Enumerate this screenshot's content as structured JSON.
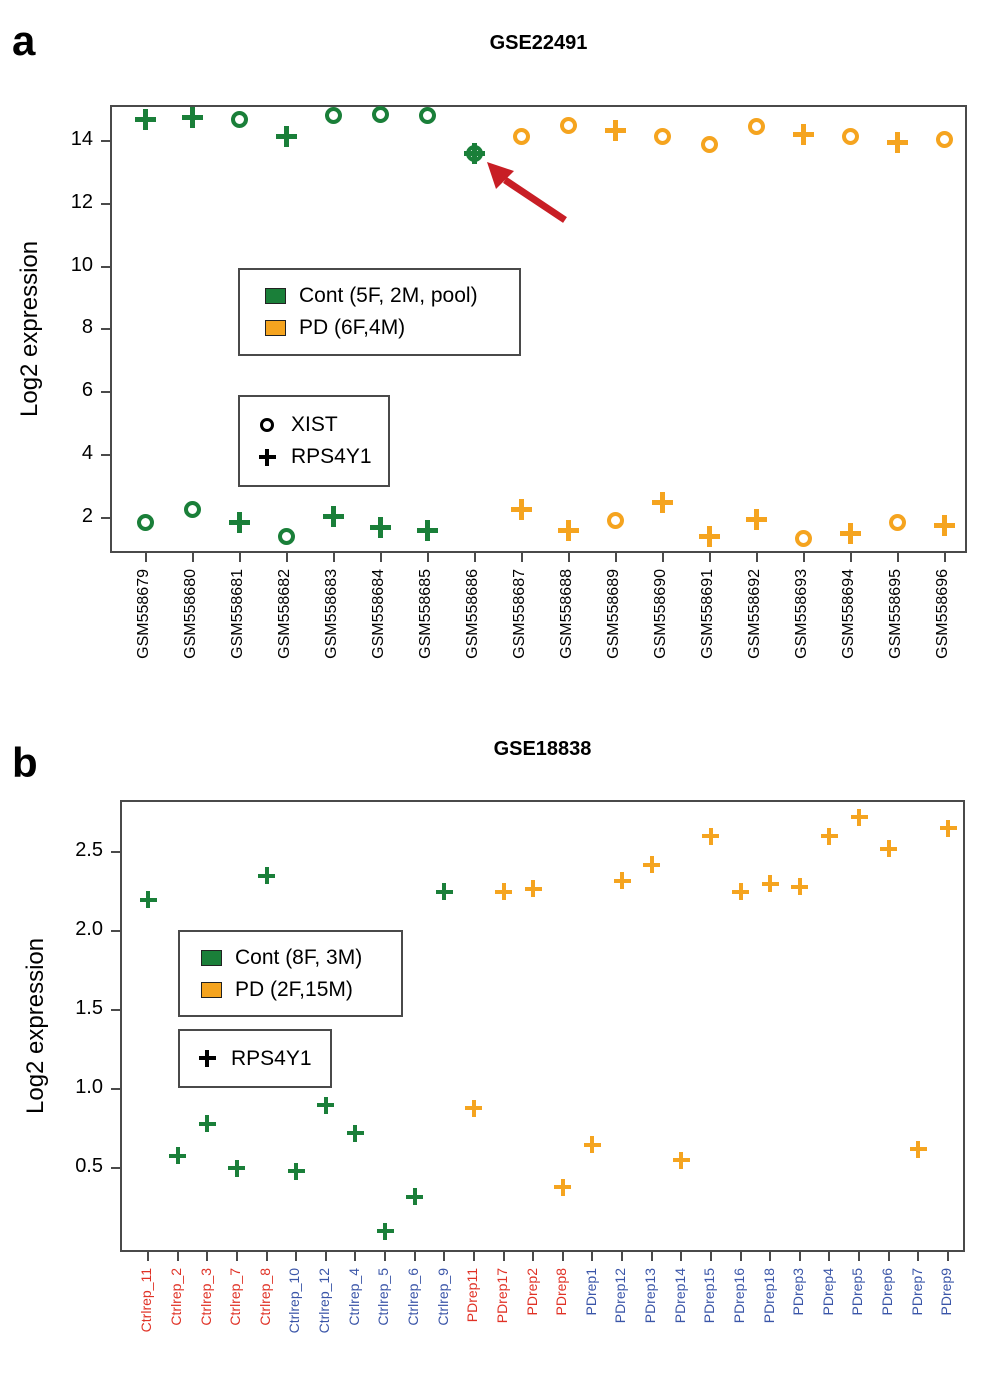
{
  "figure": {
    "panels": [
      {
        "letter": "a"
      },
      {
        "letter": "b"
      }
    ]
  },
  "chart_data": [
    {
      "type": "scatter",
      "panel": "a",
      "title": "GSE22491",
      "xlabel": "",
      "ylabel": "Log2 expression",
      "ylim": [
        0.88,
        15.15
      ],
      "yticks": [
        "2",
        "4",
        "6",
        "8",
        "10",
        "12",
        "14"
      ],
      "grid": false,
      "legend": {
        "groups": [
          {
            "key": "Cont",
            "label": "Cont (5F, 2M, pool)",
            "color": "#1a7f39"
          },
          {
            "key": "PD",
            "label": "PD (6F,4M)",
            "color": "#f5a41f"
          }
        ],
        "genes": [
          {
            "label": "XIST",
            "marker": "circle"
          },
          {
            "label": "RPS4Y1",
            "marker": "plus"
          }
        ]
      },
      "annotation": {
        "shape": "arrow",
        "color": "#c81e25",
        "points_to": "GSM558686"
      },
      "samples": [
        {
          "name": "GSM558679",
          "group": "Cont",
          "values": {
            "XIST": 1.85,
            "RPS4Y1": 14.7
          }
        },
        {
          "name": "GSM558680",
          "group": "Cont",
          "values": {
            "XIST": 2.25,
            "RPS4Y1": 14.75
          }
        },
        {
          "name": "GSM558681",
          "group": "Cont",
          "values": {
            "XIST": 14.7,
            "RPS4Y1": 1.85
          }
        },
        {
          "name": "GSM558682",
          "group": "Cont",
          "values": {
            "XIST": 1.4,
            "RPS4Y1": 14.15
          }
        },
        {
          "name": "GSM558683",
          "group": "Cont",
          "values": {
            "XIST": 14.8,
            "RPS4Y1": 2.05
          }
        },
        {
          "name": "GSM558684",
          "group": "Cont",
          "values": {
            "XIST": 14.85,
            "RPS4Y1": 1.7
          }
        },
        {
          "name": "GSM558685",
          "group": "Cont",
          "values": {
            "XIST": 14.8,
            "RPS4Y1": 1.6
          }
        },
        {
          "name": "GSM558686",
          "group": "Cont",
          "values": {
            "XIST": 13.6,
            "RPS4Y1": 13.6
          }
        },
        {
          "name": "GSM558687",
          "group": "PD",
          "values": {
            "XIST": 14.15,
            "RPS4Y1": 2.25
          }
        },
        {
          "name": "GSM558688",
          "group": "PD",
          "values": {
            "XIST": 14.5,
            "RPS4Y1": 1.6
          }
        },
        {
          "name": "GSM558689",
          "group": "PD",
          "values": {
            "XIST": 1.9,
            "RPS4Y1": 14.35
          }
        },
        {
          "name": "GSM558690",
          "group": "PD",
          "values": {
            "XIST": 14.15,
            "RPS4Y1": 2.5
          }
        },
        {
          "name": "GSM558691",
          "group": "PD",
          "values": {
            "XIST": 13.9,
            "RPS4Y1": 1.4
          }
        },
        {
          "name": "GSM558692",
          "group": "PD",
          "values": {
            "XIST": 14.45,
            "RPS4Y1": 1.95
          }
        },
        {
          "name": "GSM558693",
          "group": "PD",
          "values": {
            "XIST": 1.35,
            "RPS4Y1": 14.2
          }
        },
        {
          "name": "GSM558694",
          "group": "PD",
          "values": {
            "XIST": 14.15,
            "RPS4Y1": 1.5
          }
        },
        {
          "name": "GSM558695",
          "group": "PD",
          "values": {
            "XIST": 1.85,
            "RPS4Y1": 13.95
          }
        },
        {
          "name": "GSM558696",
          "group": "PD",
          "values": {
            "XIST": 14.05,
            "RPS4Y1": 1.75
          }
        }
      ]
    },
    {
      "type": "scatter",
      "panel": "b",
      "title": "GSE18838",
      "xlabel": "",
      "ylabel": "Log2 expression",
      "ylim": [
        -0.03,
        2.83
      ],
      "yticks": [
        "0.5",
        "1.0",
        "1.5",
        "2.0",
        "2.5"
      ],
      "grid": false,
      "label_palette": {
        "red": "#e03226",
        "blue": "#3a55a8"
      },
      "legend": {
        "groups": [
          {
            "key": "Cont",
            "label": "Cont (8F, 3M)",
            "color": "#1a7f39"
          },
          {
            "key": "PD",
            "label": "PD (2F,15M)",
            "color": "#f5a41f"
          }
        ],
        "genes": [
          {
            "label": "RPS4Y1",
            "marker": "plus"
          }
        ]
      },
      "samples": [
        {
          "name": "Ctrlrep_11",
          "group": "Cont",
          "label_color": "red",
          "values": {
            "RPS4Y1": 2.2
          }
        },
        {
          "name": "Ctrlrep_2",
          "group": "Cont",
          "label_color": "red",
          "values": {
            "RPS4Y1": 0.58
          }
        },
        {
          "name": "Ctrlrep_3",
          "group": "Cont",
          "label_color": "red",
          "values": {
            "RPS4Y1": 0.78
          }
        },
        {
          "name": "Ctrlrep_7",
          "group": "Cont",
          "label_color": "red",
          "values": {
            "RPS4Y1": 0.5
          }
        },
        {
          "name": "Ctrlrep_8",
          "group": "Cont",
          "label_color": "red",
          "values": {
            "RPS4Y1": 2.35
          }
        },
        {
          "name": "Ctrlrep_10",
          "group": "Cont",
          "label_color": "blue",
          "values": {
            "RPS4Y1": 0.48
          }
        },
        {
          "name": "Ctrlrep_12",
          "group": "Cont",
          "label_color": "blue",
          "values": {
            "RPS4Y1": 0.9
          }
        },
        {
          "name": "Ctrlrep_4",
          "group": "Cont",
          "label_color": "blue",
          "values": {
            "RPS4Y1": 0.72
          }
        },
        {
          "name": "Ctrlrep_5",
          "group": "Cont",
          "label_color": "blue",
          "values": {
            "RPS4Y1": 0.1
          }
        },
        {
          "name": "Ctrlrep_6",
          "group": "Cont",
          "label_color": "blue",
          "values": {
            "RPS4Y1": 0.32
          }
        },
        {
          "name": "Ctrlrep_9",
          "group": "Cont",
          "label_color": "blue",
          "values": {
            "RPS4Y1": 2.25
          }
        },
        {
          "name": "PDrep11",
          "group": "PD",
          "label_color": "red",
          "values": {
            "RPS4Y1": 0.88
          }
        },
        {
          "name": "PDrep17",
          "group": "PD",
          "label_color": "red",
          "values": {
            "RPS4Y1": 2.25
          }
        },
        {
          "name": "PDrep2",
          "group": "PD",
          "label_color": "red",
          "values": {
            "RPS4Y1": 2.27
          }
        },
        {
          "name": "PDrep8",
          "group": "PD",
          "label_color": "red",
          "values": {
            "RPS4Y1": 0.38
          }
        },
        {
          "name": "PDrep1",
          "group": "PD",
          "label_color": "blue",
          "values": {
            "RPS4Y1": 0.65
          }
        },
        {
          "name": "PDrep12",
          "group": "PD",
          "label_color": "blue",
          "values": {
            "RPS4Y1": 2.32
          }
        },
        {
          "name": "PDrep13",
          "group": "PD",
          "label_color": "blue",
          "values": {
            "RPS4Y1": 2.42
          }
        },
        {
          "name": "PDrep14",
          "group": "PD",
          "label_color": "blue",
          "values": {
            "RPS4Y1": 0.55
          }
        },
        {
          "name": "PDrep15",
          "group": "PD",
          "label_color": "blue",
          "values": {
            "RPS4Y1": 2.6
          }
        },
        {
          "name": "PDrep16",
          "group": "PD",
          "label_color": "blue",
          "values": {
            "RPS4Y1": 2.25
          }
        },
        {
          "name": "PDrep18",
          "group": "PD",
          "label_color": "blue",
          "values": {
            "RPS4Y1": 2.3
          }
        },
        {
          "name": "PDrep3",
          "group": "PD",
          "label_color": "blue",
          "values": {
            "RPS4Y1": 2.28
          }
        },
        {
          "name": "PDrep4",
          "group": "PD",
          "label_color": "blue",
          "values": {
            "RPS4Y1": 2.6
          }
        },
        {
          "name": "PDrep5",
          "group": "PD",
          "label_color": "blue",
          "values": {
            "RPS4Y1": 2.72
          }
        },
        {
          "name": "PDrep6",
          "group": "PD",
          "label_color": "blue",
          "values": {
            "RPS4Y1": 2.52
          }
        },
        {
          "name": "PDrep7",
          "group": "PD",
          "label_color": "blue",
          "values": {
            "RPS4Y1": 0.62
          }
        },
        {
          "name": "PDrep9",
          "group": "PD",
          "label_color": "blue",
          "values": {
            "RPS4Y1": 2.65
          }
        }
      ]
    }
  ]
}
